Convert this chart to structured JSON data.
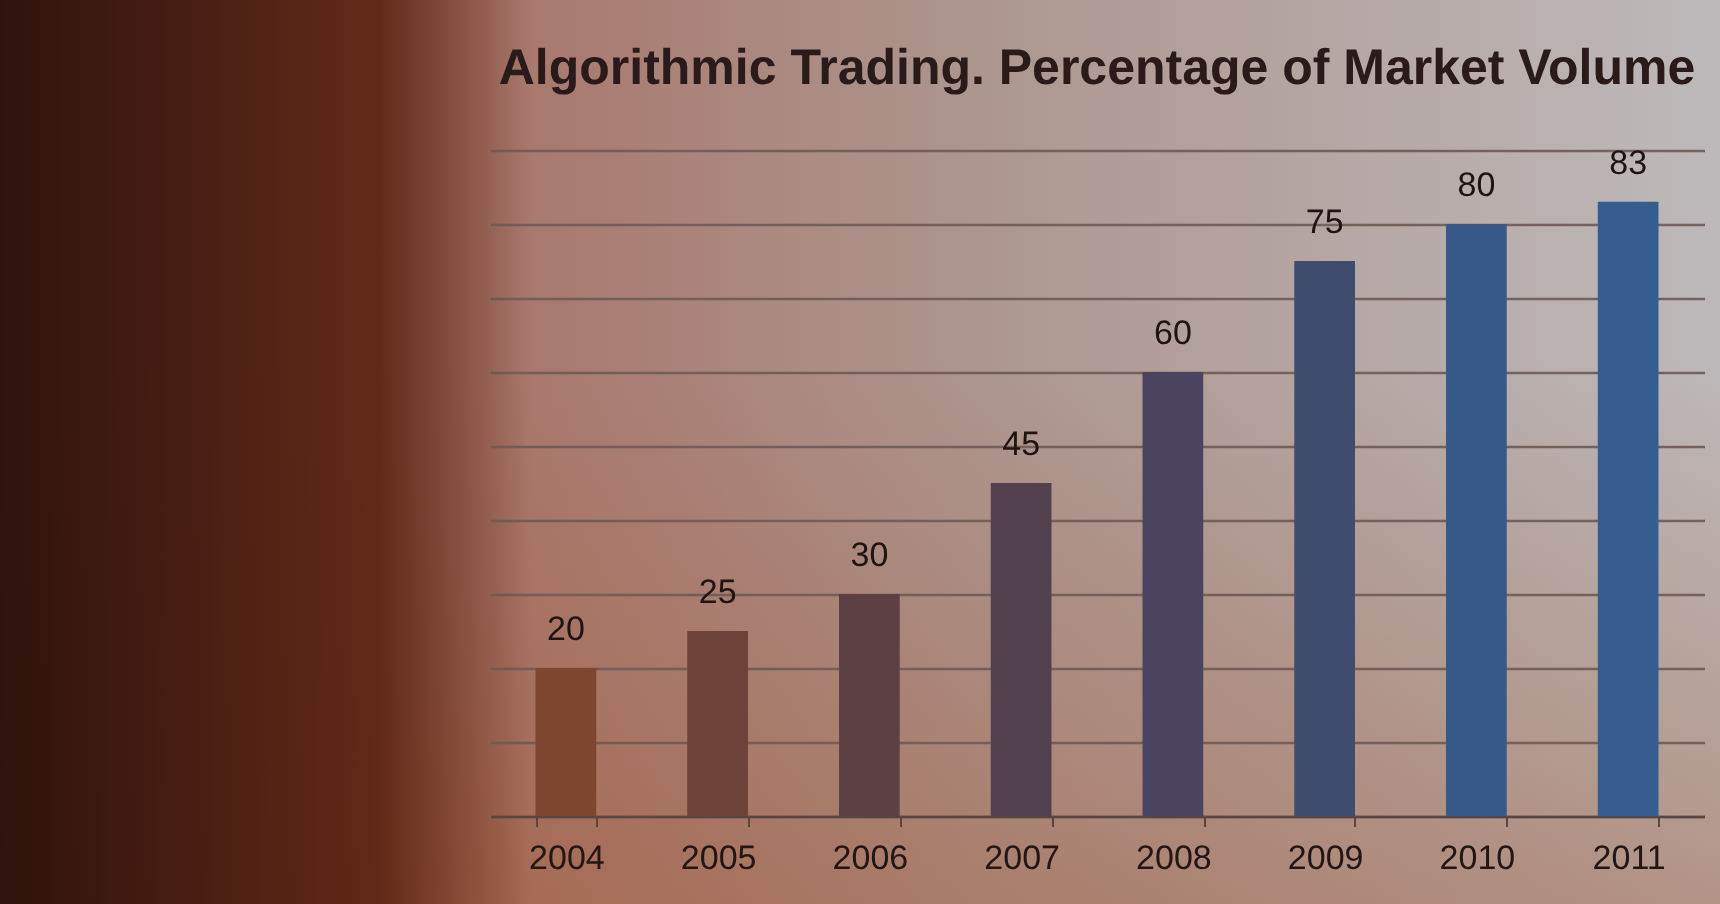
{
  "chart_data": {
    "type": "bar",
    "title": "Algorithmic Trading. Percentage of Market Volume",
    "categories": [
      "2004",
      "2005",
      "2006",
      "2007",
      "2008",
      "2009",
      "2010",
      "2011"
    ],
    "values": [
      20,
      25,
      30,
      45,
      60,
      75,
      80,
      83
    ],
    "colors": [
      "#7e4630",
      "#6d4238",
      "#5d4044",
      "#53404f",
      "#4a4460",
      "#404c6e",
      "#37598a",
      "#355d8f"
    ],
    "grid": "y",
    "tick_labels": "x",
    "data_labels": true
  }
}
